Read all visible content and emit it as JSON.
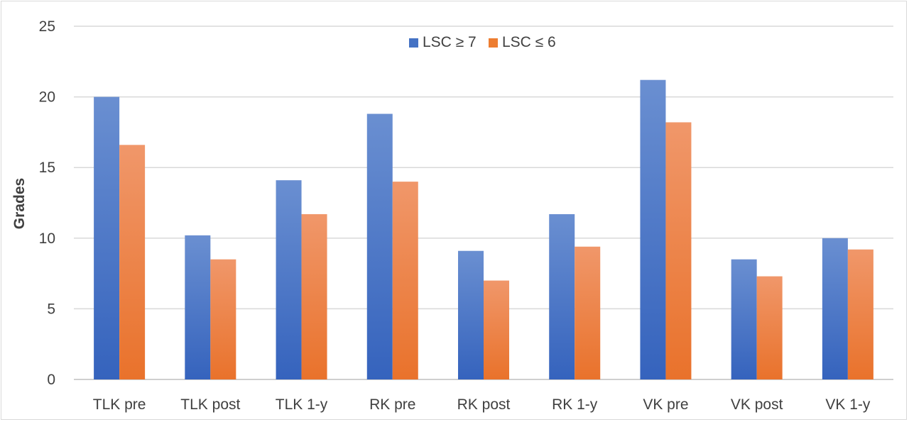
{
  "chart_data": {
    "type": "bar",
    "ylabel": "Grades",
    "xlabel": "",
    "ylim": [
      0,
      25
    ],
    "yticks": [
      0,
      5,
      10,
      15,
      20,
      25
    ],
    "grid": true,
    "legend_position": "top-center",
    "categories": [
      "TLK pre",
      "TLK post",
      "TLK 1-y",
      "RK pre",
      "RK post",
      "RK 1-y",
      "VK pre",
      "VK post",
      "VK 1-y"
    ],
    "series": [
      {
        "name": "LSC ≥ 7",
        "color": "#4472C4",
        "values": [
          20.0,
          10.2,
          14.1,
          18.8,
          9.1,
          11.7,
          21.2,
          8.5,
          10.0
        ]
      },
      {
        "name": "LSC ≤ 6",
        "color": "#ED7D31",
        "values": [
          16.6,
          8.5,
          11.7,
          14.0,
          7.0,
          9.4,
          18.2,
          7.3,
          9.2
        ]
      }
    ]
  }
}
